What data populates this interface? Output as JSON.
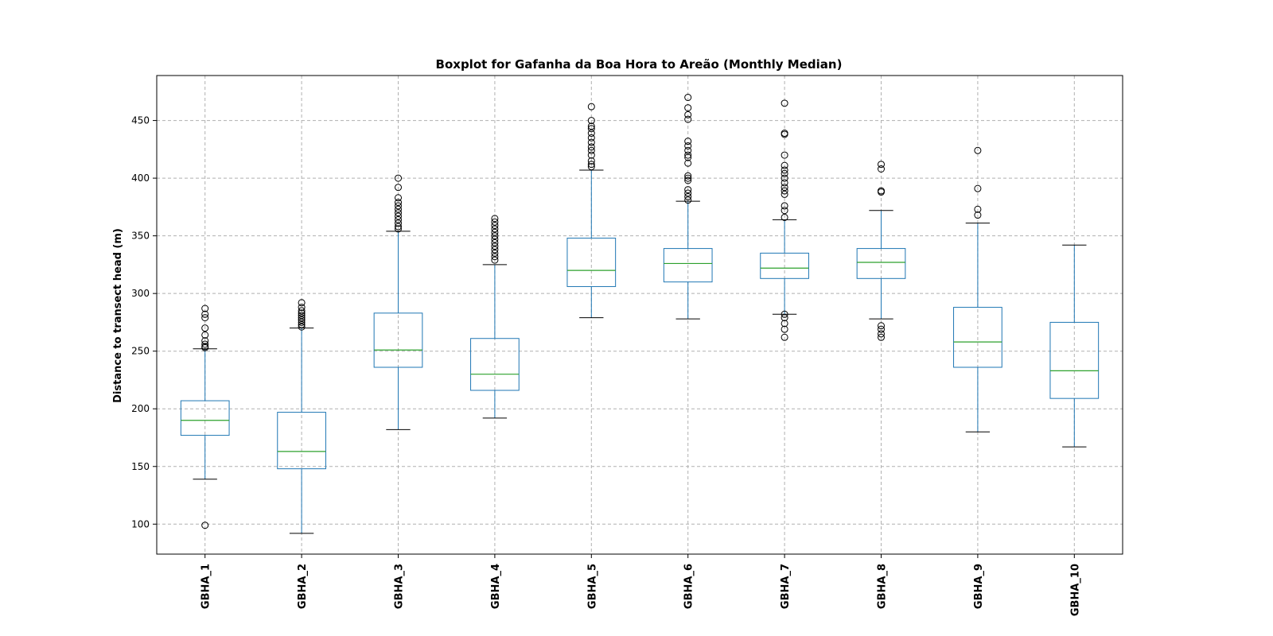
{
  "chart_data": {
    "type": "boxplot",
    "title": "Boxplot for Gafanha da Boa Hora to Areão (Monthly Median)",
    "xlabel": "",
    "ylabel": "Distance to transect head (m)",
    "ylim": [
      74,
      489
    ],
    "yticks": [
      100,
      150,
      200,
      250,
      300,
      350,
      400,
      450
    ],
    "grid": true,
    "colors": {
      "box": "#1f77b4",
      "median": "#2ca02c",
      "whisker": "#1f77b4",
      "cap": "#000000",
      "flier": "#000000",
      "grid": "#b0b0b0"
    },
    "categories": [
      "GBHA_1",
      "GBHA_2",
      "GBHA_3",
      "GBHA_4",
      "GBHA_5",
      "GBHA_6",
      "GBHA_7",
      "GBHA_8",
      "GBHA_9",
      "GBHA_10"
    ],
    "boxes": [
      {
        "name": "GBHA_1",
        "whislo": 139,
        "q1": 177,
        "med": 190,
        "q3": 207,
        "whishi": 252,
        "fliers": [
          99,
          253,
          254,
          256,
          259,
          264,
          270,
          279,
          282,
          287
        ]
      },
      {
        "name": "GBHA_2",
        "whislo": 92,
        "q1": 148,
        "med": 163,
        "q3": 197,
        "whishi": 270,
        "fliers": [
          271,
          273,
          275,
          277,
          279,
          281,
          283,
          285,
          288,
          292
        ]
      },
      {
        "name": "GBHA_3",
        "whislo": 182,
        "q1": 236,
        "med": 251,
        "q3": 283,
        "whishi": 354,
        "fliers": [
          356,
          358,
          361,
          364,
          367,
          370,
          373,
          376,
          379,
          383,
          392,
          400
        ]
      },
      {
        "name": "GBHA_4",
        "whislo": 192,
        "q1": 216,
        "med": 230,
        "q3": 261,
        "whishi": 325,
        "fliers": [
          329,
          332,
          335,
          338,
          341,
          344,
          347,
          350,
          353,
          356,
          359,
          362,
          365
        ]
      },
      {
        "name": "GBHA_5",
        "whislo": 279,
        "q1": 306,
        "med": 320,
        "q3": 348,
        "whishi": 407,
        "fliers": [
          410,
          412,
          415,
          420,
          424,
          427,
          431,
          435,
          439,
          443,
          445,
          450,
          462
        ]
      },
      {
        "name": "GBHA_6",
        "whislo": 278,
        "q1": 310,
        "med": 326,
        "q3": 339,
        "whishi": 380,
        "fliers": [
          381,
          384,
          387,
          390,
          398,
          400,
          402,
          413,
          418,
          420,
          424,
          428,
          432,
          451,
          455,
          461,
          470
        ]
      },
      {
        "name": "GBHA_7",
        "whislo": 282,
        "q1": 313,
        "med": 322,
        "q3": 335,
        "whishi": 364,
        "fliers": [
          262,
          269,
          274,
          279,
          282,
          366,
          372,
          376,
          386,
          389,
          392,
          396,
          400,
          404,
          407,
          411,
          420,
          438,
          439,
          465
        ]
      },
      {
        "name": "GBHA_8",
        "whislo": 278,
        "q1": 313,
        "med": 327,
        "q3": 339,
        "whishi": 372,
        "fliers": [
          262,
          265,
          269,
          272,
          388,
          389,
          408,
          412
        ]
      },
      {
        "name": "GBHA_9",
        "whislo": 180,
        "q1": 236,
        "med": 258,
        "q3": 288,
        "whishi": 361,
        "fliers": [
          368,
          373,
          391,
          424
        ]
      },
      {
        "name": "GBHA_10",
        "whislo": 167,
        "q1": 209,
        "med": 233,
        "q3": 275,
        "whishi": 342,
        "fliers": []
      }
    ]
  }
}
